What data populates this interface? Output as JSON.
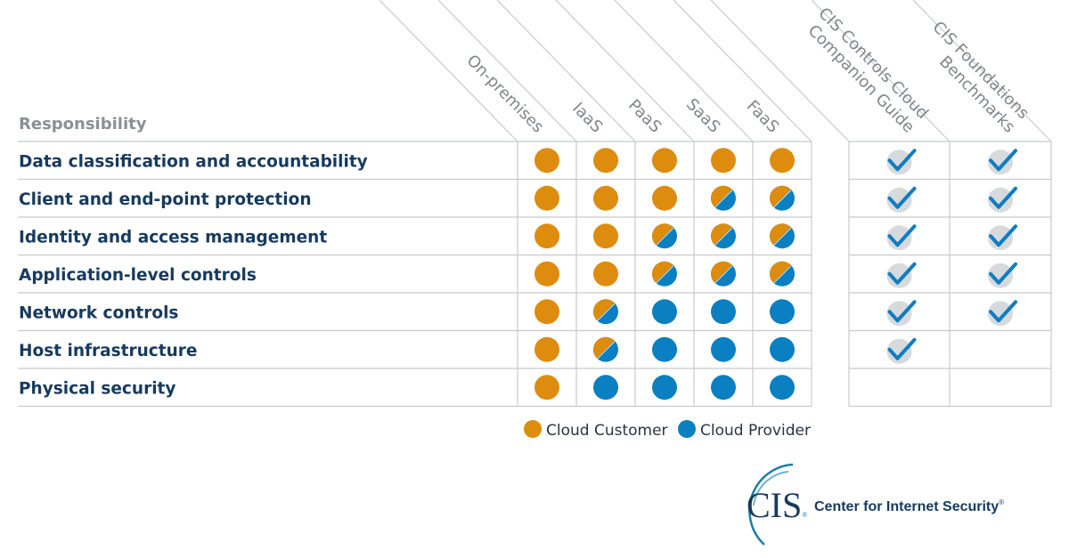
{
  "colors": {
    "customer": "#de8c0e",
    "provider": "#0a7fc1",
    "check": "#0f7dc2",
    "check_bg": "#d7dadd",
    "grid": "#c8cacc",
    "text": "#173a5e",
    "header": "#80868b"
  },
  "header": {
    "responsibility": "Responsibility",
    "service_columns": [
      "On-premises",
      "IaaS",
      "PaaS",
      "SaaS",
      "FaaS"
    ],
    "cis_columns": [
      {
        "line1": "CIS Controls Cloud",
        "line2": "Companion Guide"
      },
      {
        "line1": "CIS Foundations",
        "line2": "Benchmarks"
      }
    ]
  },
  "rows": [
    {
      "label": "Data classification and accountability",
      "values": [
        "customer",
        "customer",
        "customer",
        "customer",
        "customer"
      ],
      "cis": [
        true,
        true
      ]
    },
    {
      "label": "Client and end-point protection",
      "values": [
        "customer",
        "customer",
        "customer",
        "shared",
        "shared"
      ],
      "cis": [
        true,
        true
      ]
    },
    {
      "label": "Identity and access management",
      "values": [
        "customer",
        "customer",
        "shared",
        "shared",
        "shared"
      ],
      "cis": [
        true,
        true
      ]
    },
    {
      "label": "Application-level controls",
      "values": [
        "customer",
        "customer",
        "shared",
        "shared",
        "shared"
      ],
      "cis": [
        true,
        true
      ]
    },
    {
      "label": "Network controls",
      "values": [
        "customer",
        "shared",
        "provider",
        "provider",
        "provider"
      ],
      "cis": [
        true,
        true
      ]
    },
    {
      "label": "Host infrastructure",
      "values": [
        "customer",
        "shared",
        "provider",
        "provider",
        "provider"
      ],
      "cis": [
        true,
        false
      ]
    },
    {
      "label": "Physical security",
      "values": [
        "customer",
        "provider",
        "provider",
        "provider",
        "provider"
      ],
      "cis": [
        false,
        false
      ]
    }
  ],
  "legend": {
    "customer": "Cloud Customer",
    "provider": "Cloud Provider"
  },
  "logo": {
    "mark": "CIS",
    "name": "Center for Internet Security",
    "registered": "®"
  }
}
